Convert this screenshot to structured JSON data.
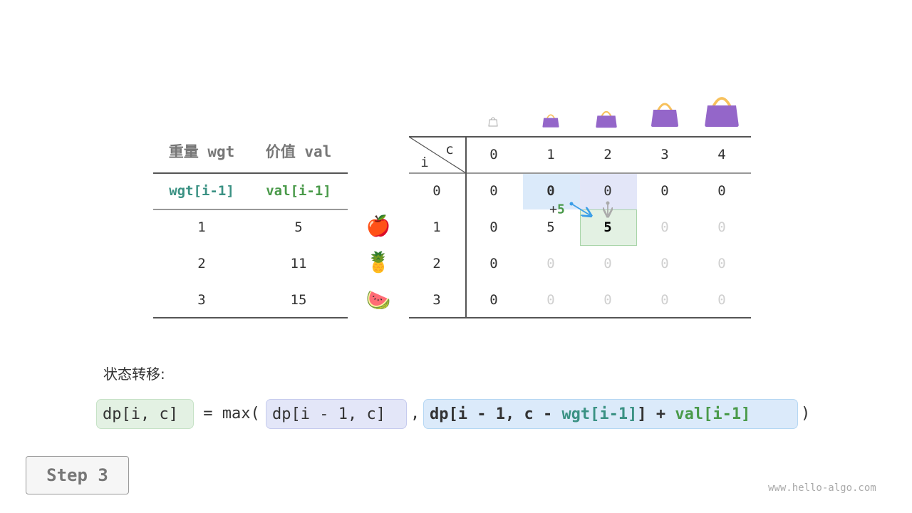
{
  "left_table": {
    "headers": [
      "重量 wgt",
      "价值 val"
    ],
    "subheaders": [
      "wgt[i-1]",
      "val[i-1]"
    ],
    "rows": [
      [
        "1",
        "5"
      ],
      [
        "2",
        "11"
      ],
      [
        "3",
        "15"
      ]
    ]
  },
  "items": [
    {
      "icon": "apple-icon",
      "emoji": "🍎"
    },
    {
      "icon": "pineapple-icon",
      "emoji": "🍍"
    },
    {
      "icon": "watermelon-icon",
      "emoji": "🍉"
    }
  ],
  "dp_table": {
    "corner_col": "c",
    "corner_row": "i",
    "cols": [
      "0",
      "1",
      "2",
      "3",
      "4"
    ],
    "row_labels": [
      "0",
      "1",
      "2",
      "3"
    ],
    "cells": [
      [
        "0",
        "0",
        "0",
        "0",
        "0"
      ],
      [
        "0",
        "5",
        "5",
        "0",
        "0"
      ],
      [
        "0",
        "0",
        "0",
        "0",
        "0"
      ],
      [
        "0",
        "0",
        "0",
        "0",
        "0"
      ]
    ],
    "computed": [
      [
        true,
        true,
        true,
        true,
        true
      ],
      [
        true,
        true,
        true,
        false,
        false
      ],
      [
        true,
        false,
        false,
        false,
        false
      ],
      [
        true,
        false,
        false,
        false,
        false
      ]
    ],
    "highlight": {
      "from_diag": [
        0,
        1
      ],
      "from_up": [
        0,
        2
      ],
      "target": [
        1,
        2
      ]
    },
    "annotation_plus": "+",
    "annotation_value": "5"
  },
  "formula": {
    "label": "状态转移:",
    "lhs": "dp[i, c]",
    "eq": " = max(",
    "opt1": "dp[i - 1, c]",
    "comma": ",",
    "opt2_a": "dp[i - 1, c - ",
    "opt2_wgt": "wgt[i-1]",
    "opt2_b": "] + ",
    "opt2_val": "val[i-1]",
    "close": ")"
  },
  "colors": {
    "blue": "#dbeafa",
    "purple": "#e3e6f8",
    "green": "#e3f1e3",
    "bag": "#9466c9",
    "handle": "#f7c15c",
    "teal": "#3a9183",
    "val_green": "#4a9a4a"
  },
  "step_button": "Step 3",
  "watermark": "www.hello-algo.com"
}
